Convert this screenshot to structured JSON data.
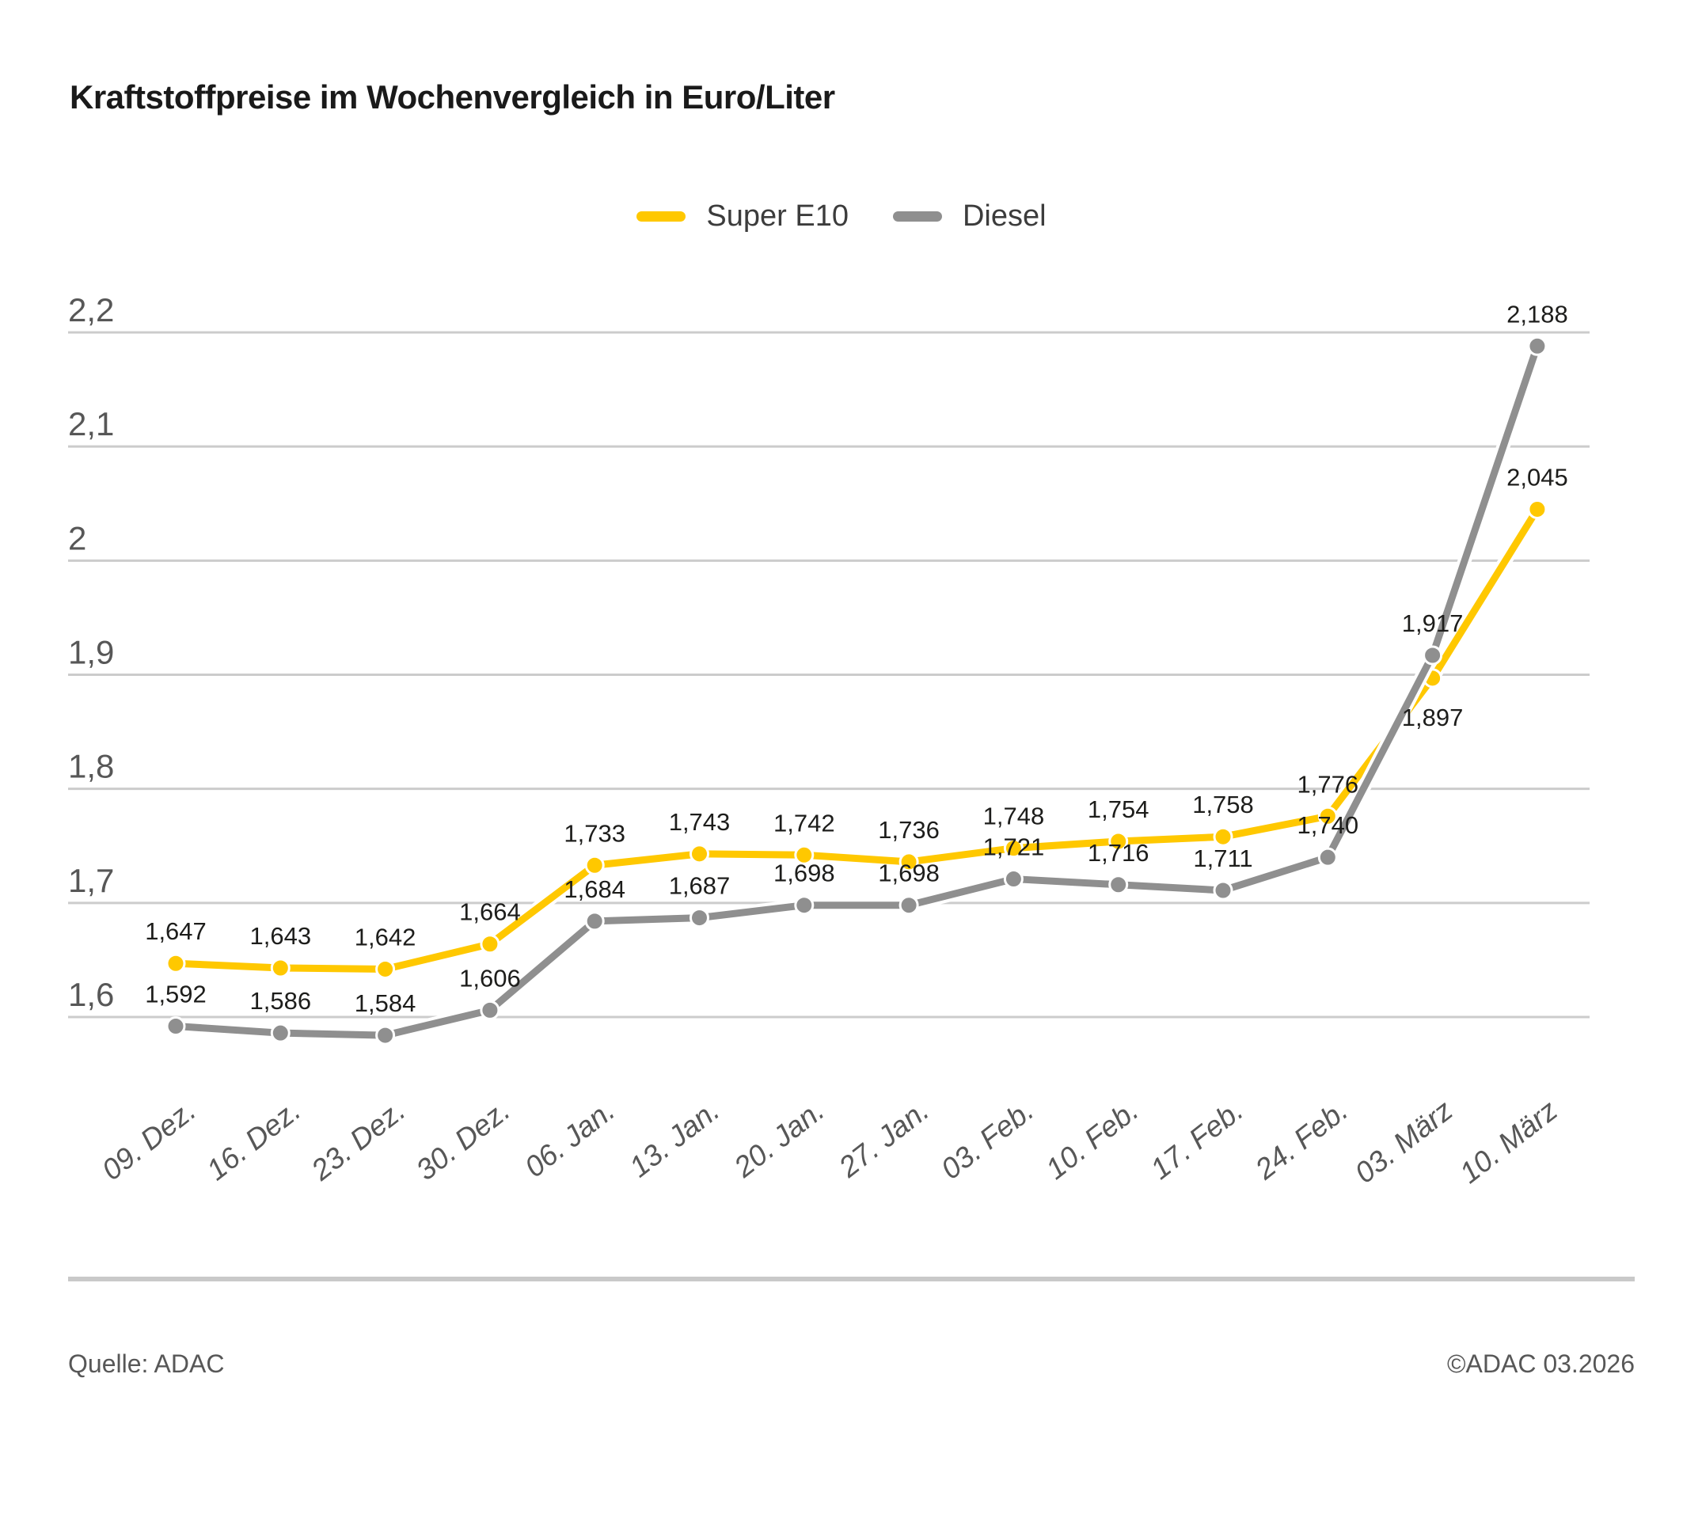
{
  "title": "Kraftstoffpreise im Wochenvergleich in Euro/Liter",
  "footer": {
    "source": "Quelle: ADAC",
    "copyright": "©ADAC 03.2026"
  },
  "colors": {
    "super_e10": "#FFC800",
    "diesel": "#8F8F8F",
    "gridline": "#CCCCCC",
    "axis_label": "#575757",
    "data_label": "#1D1D1B",
    "divider": "#C9C9C9"
  },
  "chart_data": {
    "type": "line",
    "title": "Kraftstoffpreise im Wochenvergleich in Euro/Liter",
    "unit": "Euro/Liter",
    "decimal_separator": ",",
    "grid": true,
    "legend_position": "top",
    "xlabel": "",
    "ylabel": "",
    "ylim": [
      1.55,
      2.25
    ],
    "categories": [
      "09. Dez.",
      "16. Dez.",
      "23. Dez.",
      "30. Dez.",
      "06. Jan.",
      "13. Jan.",
      "20. Jan.",
      "27. Jan.",
      "03. Feb.",
      "10. Feb.",
      "17. Feb.",
      "24. Feb.",
      "03. März",
      "10. März"
    ],
    "y_ticks": [
      {
        "value": 2.2,
        "label": "2,2"
      },
      {
        "value": 2.1,
        "label": "2,1"
      },
      {
        "value": 2.0,
        "label": "2"
      },
      {
        "value": 1.9,
        "label": "1,9"
      },
      {
        "value": 1.8,
        "label": "1,8"
      },
      {
        "value": 1.7,
        "label": "1,7"
      },
      {
        "value": 1.6,
        "label": "1,6"
      }
    ],
    "series": [
      {
        "name": "Super E10",
        "color": "#FFC800",
        "values": [
          1.647,
          1.643,
          1.642,
          1.664,
          1.733,
          1.743,
          1.742,
          1.736,
          1.748,
          1.754,
          1.758,
          1.776,
          1.897,
          2.045
        ]
      },
      {
        "name": "Diesel",
        "color": "#8F8F8F",
        "values": [
          1.592,
          1.586,
          1.584,
          1.606,
          1.684,
          1.687,
          1.698,
          1.698,
          1.721,
          1.716,
          1.711,
          1.74,
          1.917,
          2.188
        ]
      }
    ]
  }
}
